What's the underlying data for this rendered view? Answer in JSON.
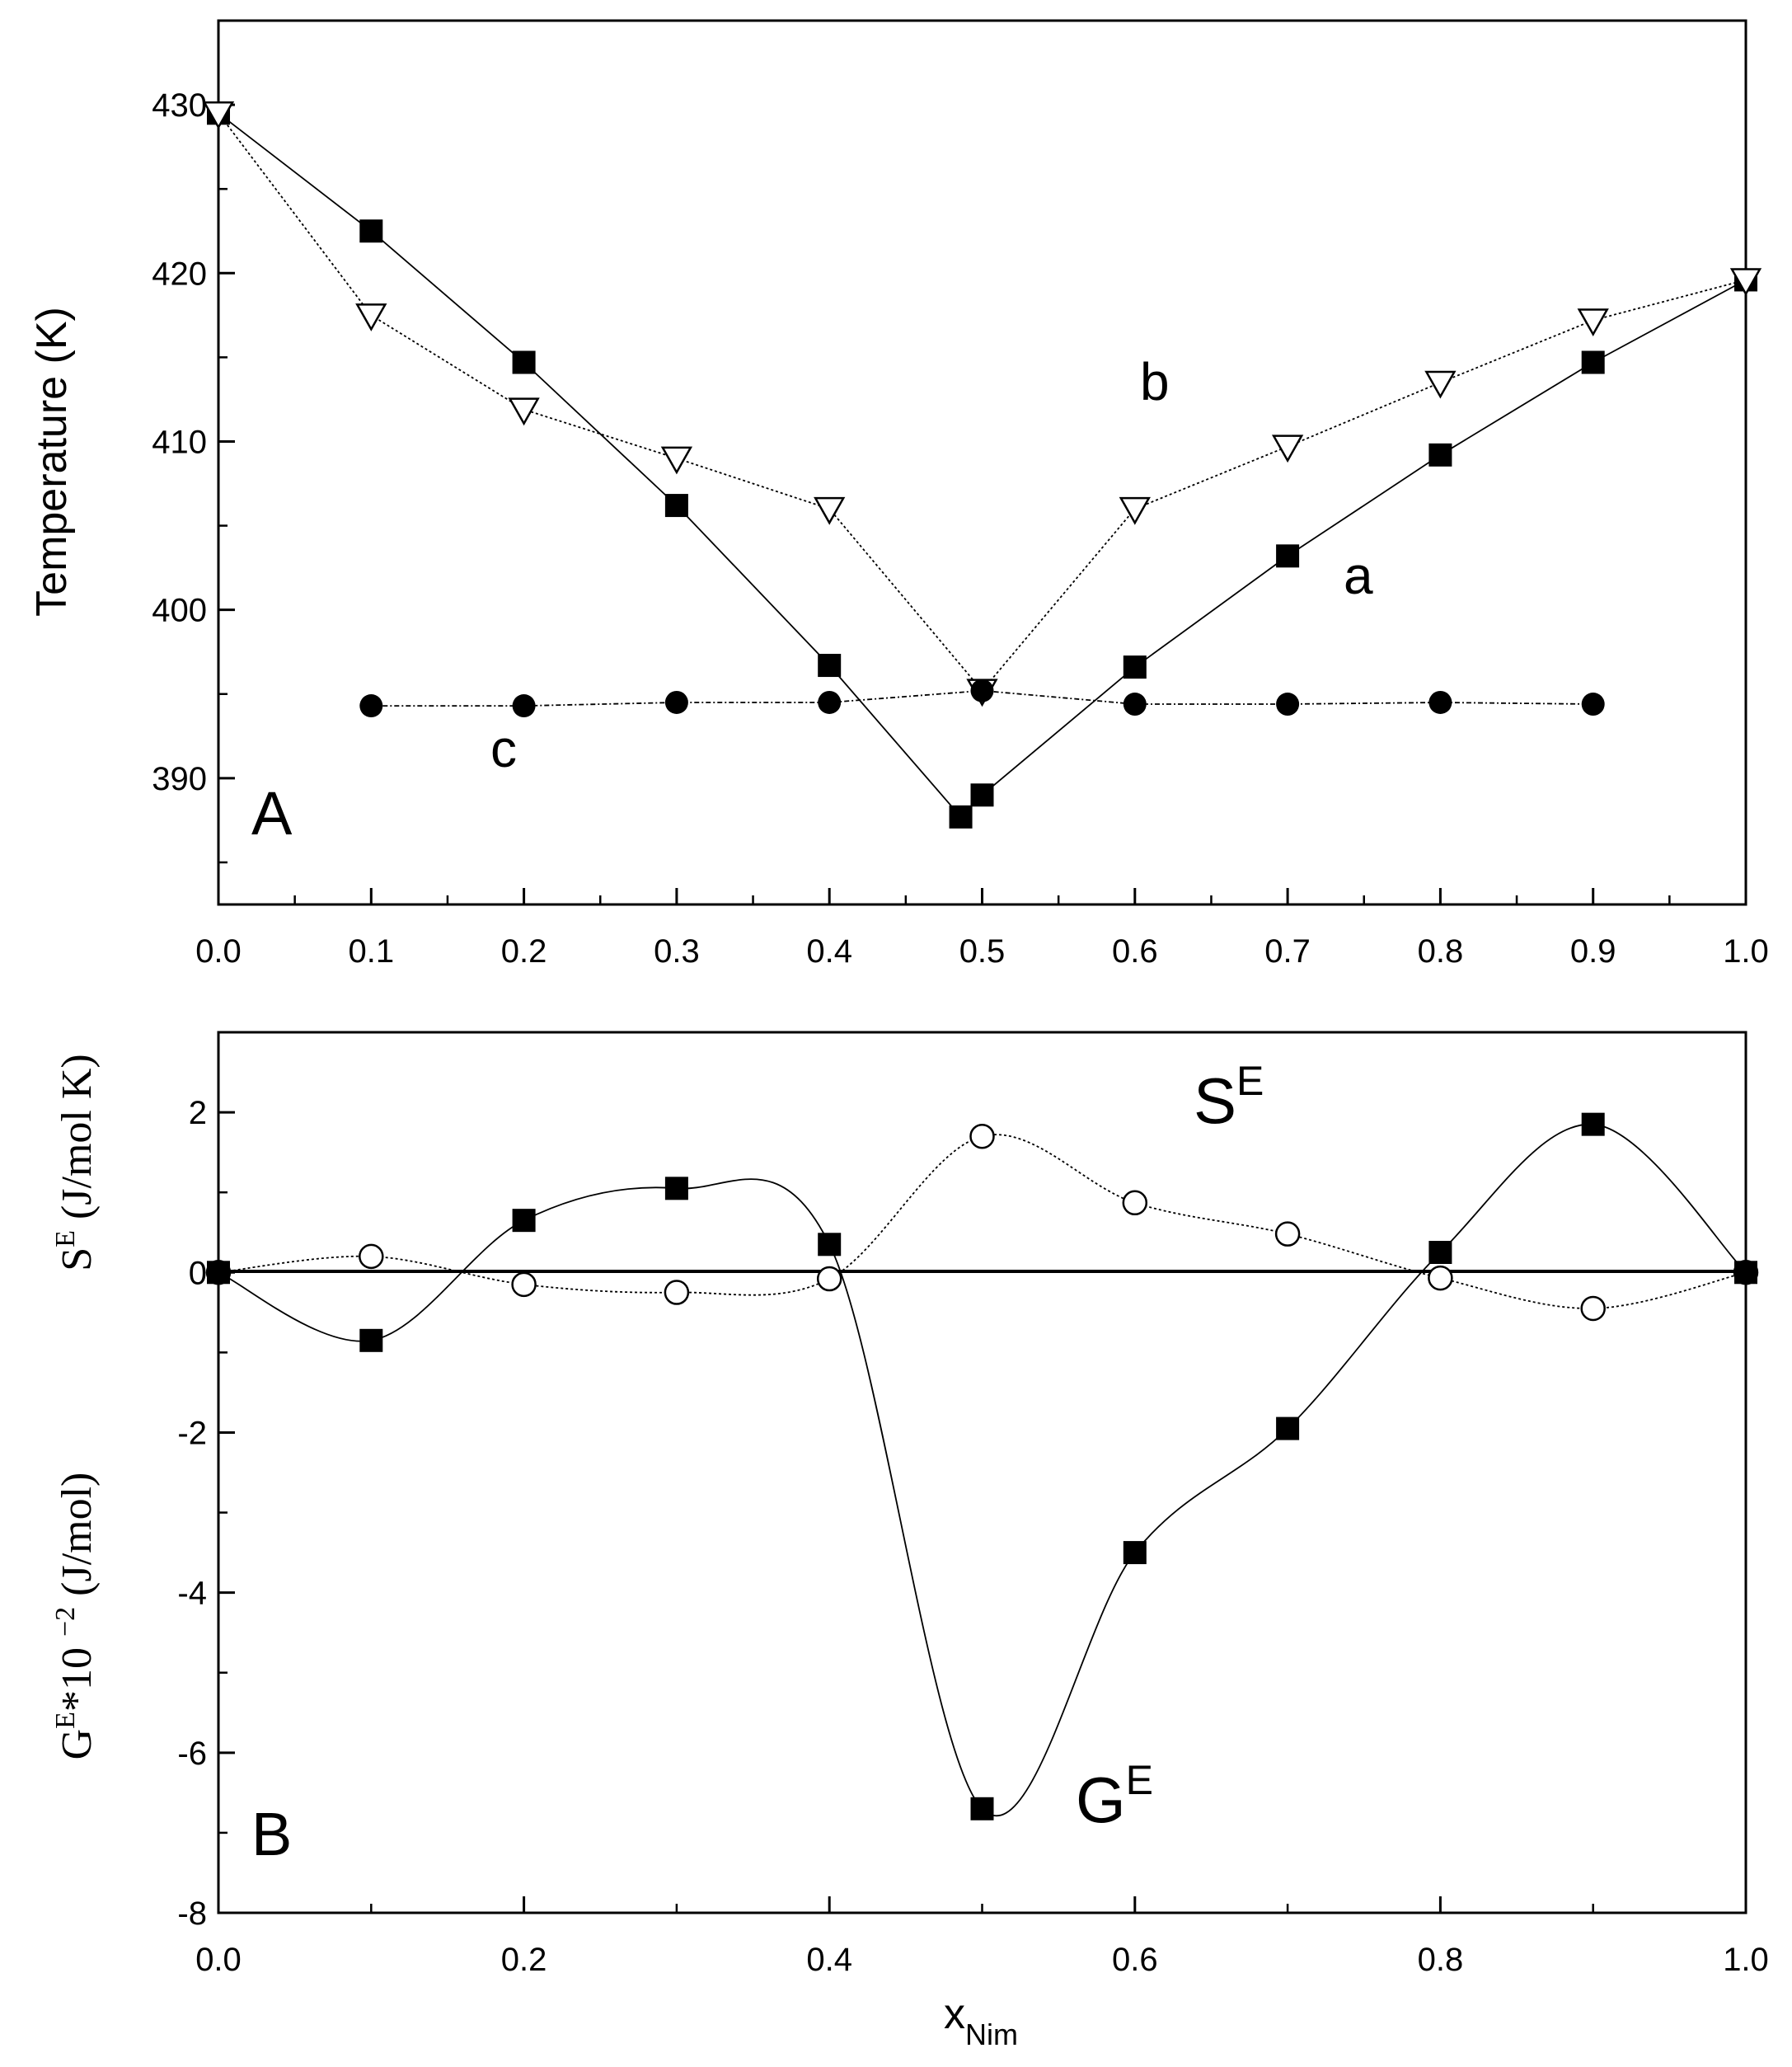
{
  "chart_data": [
    {
      "type": "line",
      "panel_label": "A",
      "ylabel": "Temperature (K)",
      "xlim": [
        0.0,
        1.0
      ],
      "ylim": [
        382.5,
        435
      ],
      "x_ticks": [
        "0.0",
        "0.1",
        "0.2",
        "0.3",
        "0.4",
        "0.5",
        "0.6",
        "0.7",
        "0.8",
        "0.9",
        "1.0"
      ],
      "y_ticks": [
        "390",
        "400",
        "410",
        "420",
        "430"
      ],
      "series": [
        {
          "name": "a",
          "marker": "filled-square",
          "x": [
            0.0,
            0.1,
            0.2,
            0.3,
            0.4,
            0.486,
            0.5,
            0.6,
            0.7,
            0.8,
            0.9,
            1.0
          ],
          "y": [
            429.5,
            422.5,
            414.7,
            406.2,
            396.7,
            387.7,
            389.0,
            396.6,
            403.2,
            409.2,
            414.7,
            419.6
          ]
        },
        {
          "name": "b",
          "marker": "open-triangle-down",
          "x": [
            0.0,
            0.1,
            0.2,
            0.3,
            0.4,
            0.5,
            0.6,
            0.7,
            0.8,
            0.9,
            1.0
          ],
          "y": [
            429.5,
            417.5,
            411.9,
            409.0,
            406.0,
            395.2,
            406.0,
            409.7,
            413.5,
            417.2,
            419.6
          ]
        },
        {
          "name": "c",
          "marker": "filled-circle",
          "x": [
            0.1,
            0.2,
            0.3,
            0.4,
            0.5,
            0.6,
            0.7,
            0.8,
            0.9
          ],
          "y": [
            394.3,
            394.3,
            394.5,
            394.5,
            395.2,
            394.4,
            394.4,
            394.5,
            394.4
          ]
        }
      ],
      "annotations": [
        "a",
        "b",
        "c"
      ]
    },
    {
      "type": "line",
      "panel_label": "B",
      "xlabel": "x",
      "xlabel_subscript": "Nim",
      "ylabel_upper": "S",
      "ylabel_upper_sup": "E",
      "ylabel_upper_rest": " (J/mol K)",
      "ylabel_lower": "G",
      "ylabel_lower_sup": "E",
      "ylabel_lower_mid": "*10 ",
      "ylabel_lower_sup2": "−2",
      "ylabel_lower_rest": " (J/mol)",
      "xlim": [
        0.0,
        1.0
      ],
      "ylim": [
        -8,
        3
      ],
      "x_ticks": [
        "0.0",
        "0.2",
        "0.4",
        "0.6",
        "0.8",
        "1.0"
      ],
      "y_ticks": [
        "-8",
        "-6",
        "-4",
        "-2",
        "0",
        "2"
      ],
      "series": [
        {
          "name": "Sᴱ",
          "label_main": "S",
          "label_sup": "E",
          "marker": "open-circle",
          "x": [
            0.0,
            0.1,
            0.2,
            0.3,
            0.4,
            0.5,
            0.6,
            0.7,
            0.8,
            0.9,
            1.0
          ],
          "y": [
            0.0,
            0.2,
            -0.15,
            -0.25,
            -0.08,
            1.7,
            0.87,
            0.48,
            -0.07,
            -0.45,
            0.0
          ]
        },
        {
          "name": "Gᴱ",
          "label_main": "G",
          "label_sup": "E",
          "marker": "filled-square",
          "x": [
            0.0,
            0.1,
            0.2,
            0.3,
            0.4,
            0.5,
            0.6,
            0.7,
            0.8,
            0.9,
            1.0
          ],
          "y": [
            0.0,
            -0.85,
            0.65,
            1.05,
            0.35,
            -6.7,
            -3.5,
            -1.95,
            0.25,
            1.85,
            0.0
          ]
        }
      ]
    }
  ]
}
